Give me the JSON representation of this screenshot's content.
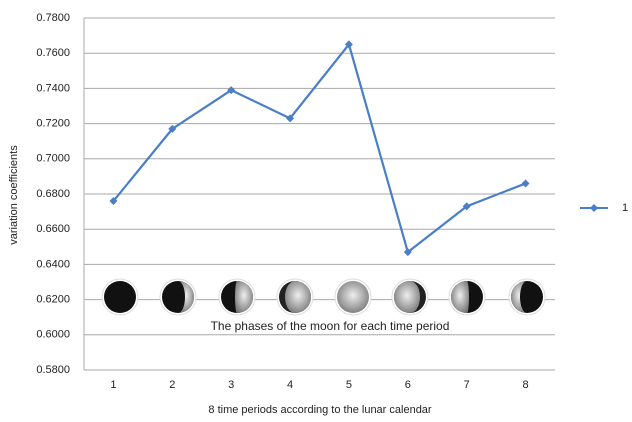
{
  "chart_data": {
    "type": "line",
    "x_label": "8 time periods according to the lunar calendar",
    "y_label": "variation coefficients",
    "annotation": "The phases of the moon for each time period",
    "categories": [
      "1",
      "2",
      "3",
      "4",
      "5",
      "6",
      "7",
      "8"
    ],
    "series": [
      {
        "name": "1",
        "color": "#4a7fc7",
        "values": [
          0.676,
          0.717,
          0.739,
          0.723,
          0.765,
          0.647,
          0.673,
          0.686
        ]
      }
    ],
    "ylim": [
      0.58,
      0.78
    ],
    "yticks": [
      {
        "value": 0.58,
        "label": "0.5800"
      },
      {
        "value": 0.6,
        "label": "0.6000"
      },
      {
        "value": 0.62,
        "label": "0.6200"
      },
      {
        "value": 0.64,
        "label": "0.6400"
      },
      {
        "value": 0.66,
        "label": "0.6600"
      },
      {
        "value": 0.68,
        "label": "0.6800"
      },
      {
        "value": 0.7,
        "label": "0.7000"
      },
      {
        "value": 0.72,
        "label": "0.7200"
      },
      {
        "value": 0.74,
        "label": "0.7400"
      },
      {
        "value": 0.76,
        "label": "0.7600"
      },
      {
        "value": 0.78,
        "label": "0.7800"
      }
    ],
    "grid": true,
    "legend": "right"
  }
}
